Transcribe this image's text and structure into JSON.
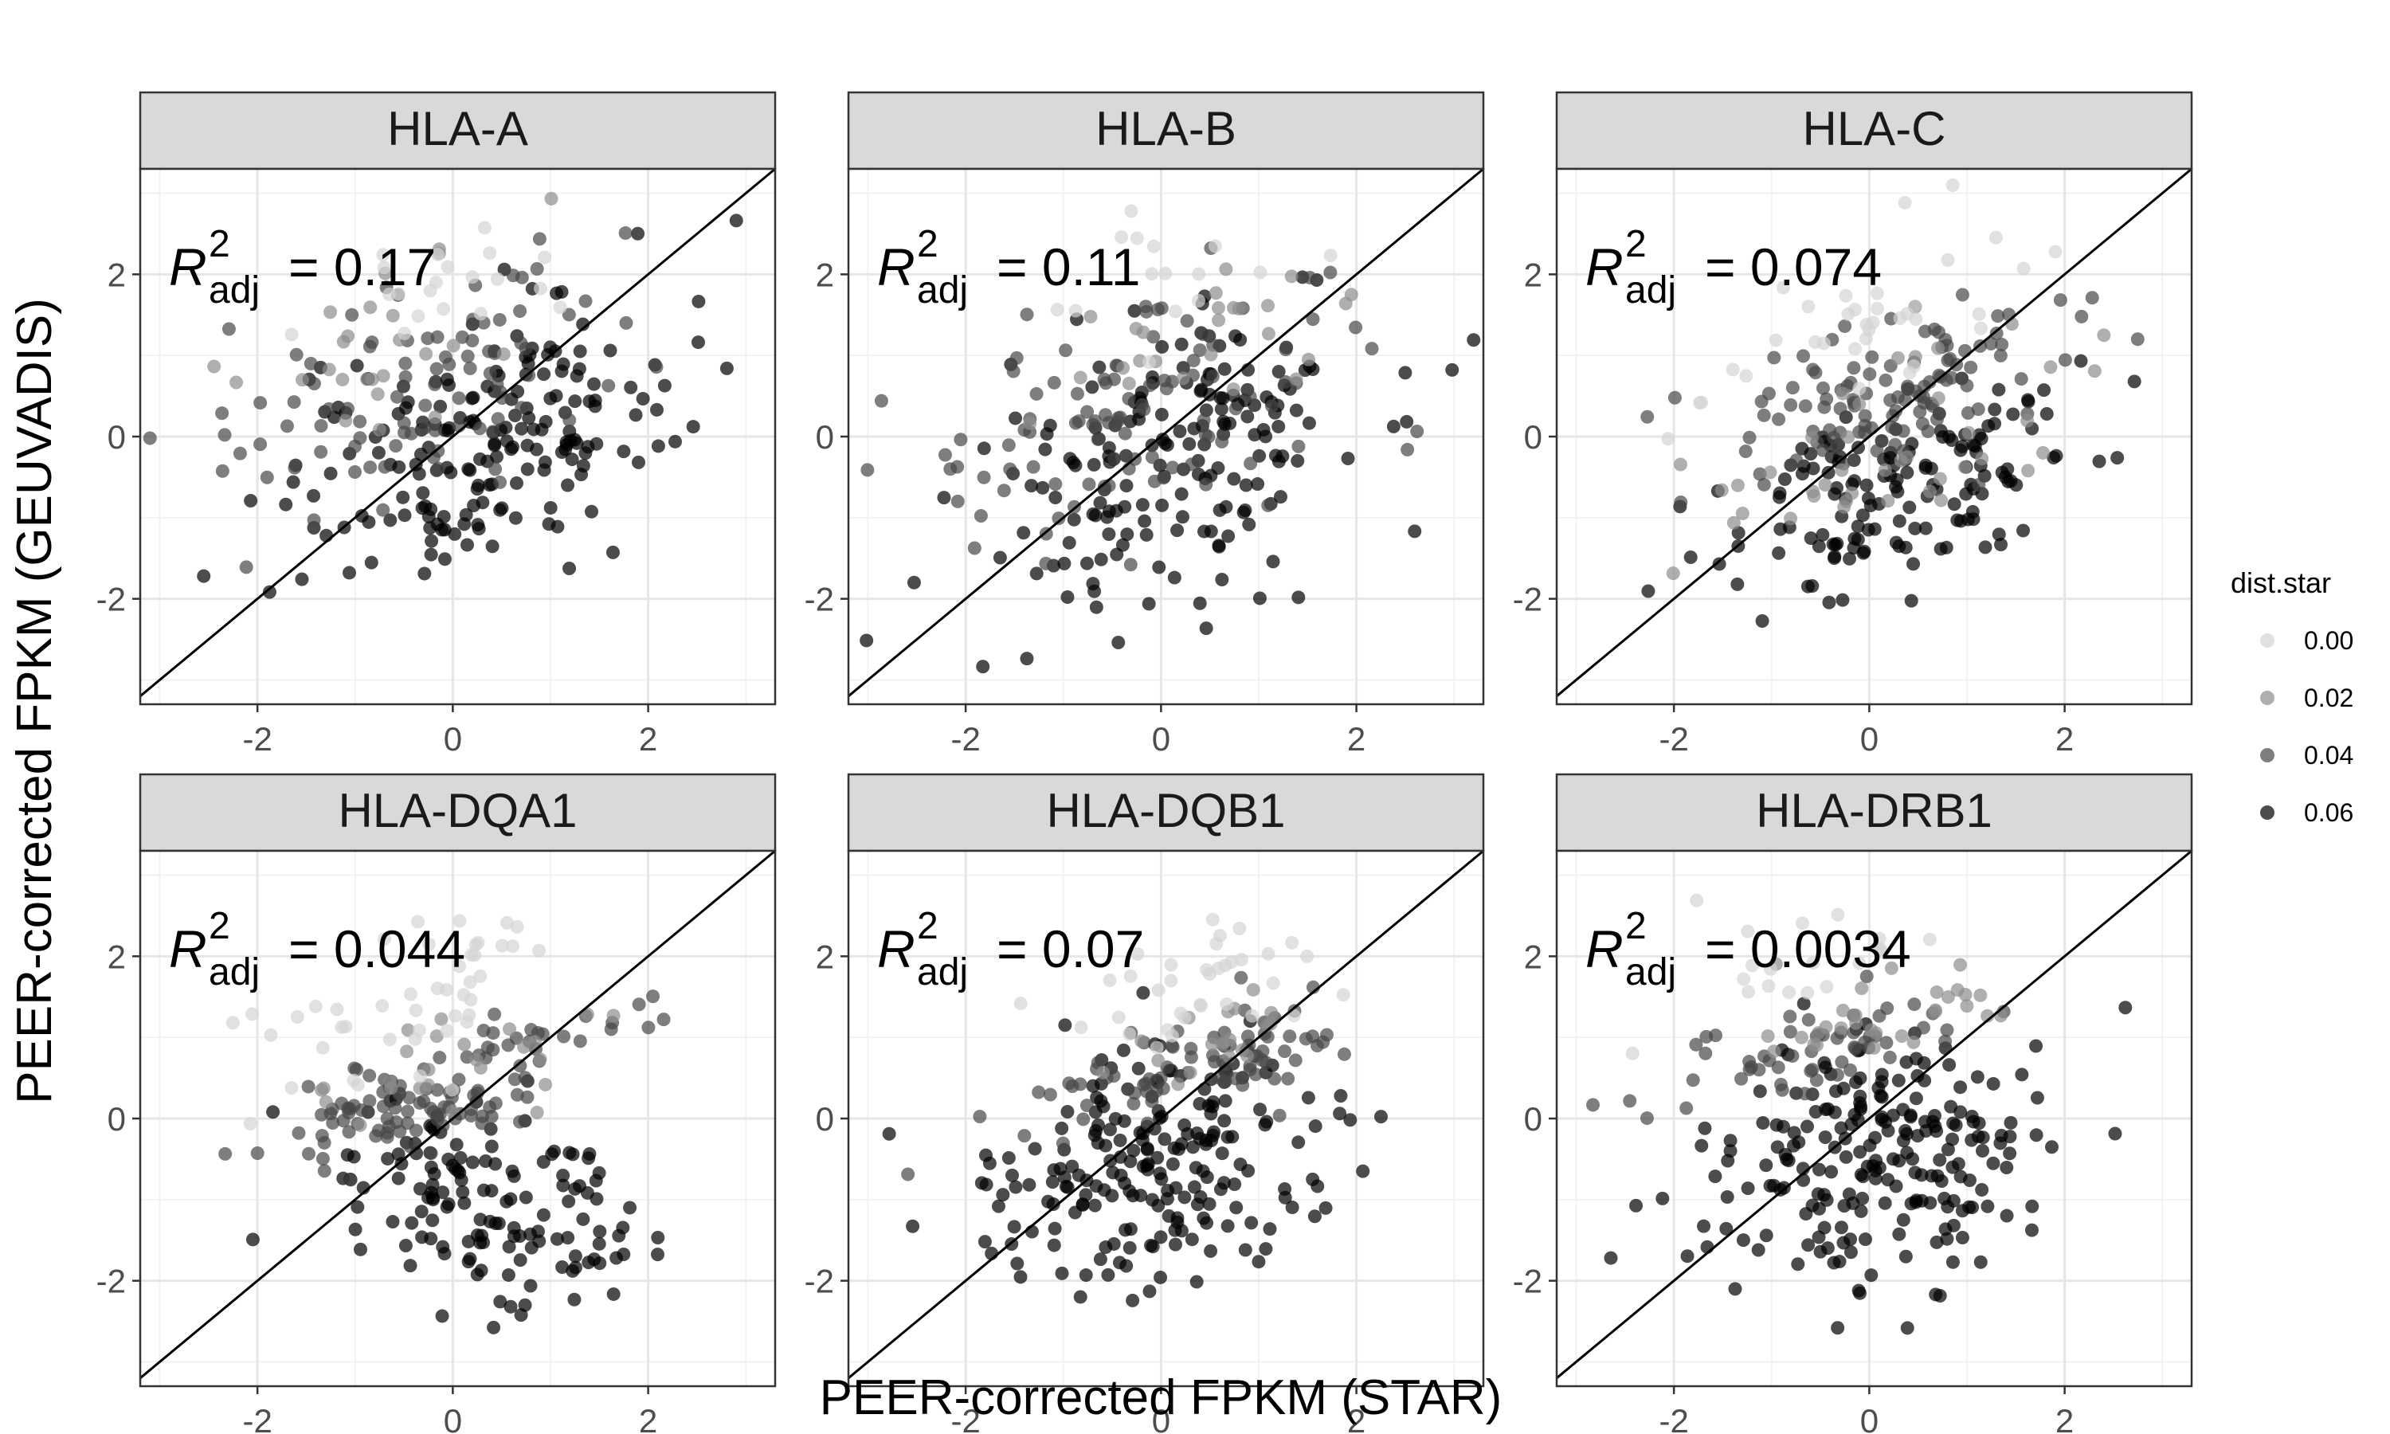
{
  "figure": {
    "xlabel": "PEER-corrected FPKM (STAR)",
    "ylabel": "PEER-corrected FPKM (GEUVADIS)",
    "legend_title": "dist.star",
    "legend_items": [
      "0.00",
      "0.02",
      "0.04",
      "0.06"
    ],
    "x_ticks": [
      "-2",
      "0",
      "2"
    ],
    "y_ticks": [
      "-2",
      "0",
      "2"
    ],
    "panel_strip_color": "#d9d9d9",
    "point_color_light": "#d4d4d4",
    "point_color_dark": "#000000"
  },
  "chart_data": [
    {
      "type": "scatter",
      "title": "HLA-A",
      "annotation": {
        "symbol": "R",
        "superscript": "2",
        "subscript": "adj",
        "value": "= 0.17"
      },
      "xlim": [
        -3.2,
        3.3
      ],
      "ylim": [
        -3.3,
        3.3
      ],
      "identity_line": true,
      "clusters": [
        {
          "dist": 0.06,
          "n": 190,
          "cx": 0.2,
          "cy": -0.1,
          "sx": 1.0,
          "sy": 0.75,
          "slope": 0.35
        },
        {
          "dist": 0.04,
          "n": 90,
          "cx": -0.2,
          "cy": 0.6,
          "sx": 1.1,
          "sy": 0.7,
          "slope": 0.3
        },
        {
          "dist": 0.02,
          "n": 25,
          "cx": -0.6,
          "cy": 1.2,
          "sx": 0.8,
          "sy": 0.6,
          "slope": 0.2
        },
        {
          "dist": 0.0,
          "n": 20,
          "cx": 0.0,
          "cy": 1.9,
          "sx": 0.7,
          "sy": 0.5,
          "slope": 0.2
        }
      ]
    },
    {
      "type": "scatter",
      "title": "HLA-B",
      "annotation": {
        "symbol": "R",
        "superscript": "2",
        "subscript": "adj",
        "value": "= 0.11"
      },
      "xlim": [
        -3.2,
        3.3
      ],
      "ylim": [
        -3.3,
        3.3
      ],
      "identity_line": true,
      "clusters": [
        {
          "dist": 0.06,
          "n": 180,
          "cx": 0.1,
          "cy": -0.3,
          "sx": 1.0,
          "sy": 0.9,
          "slope": 0.3
        },
        {
          "dist": 0.04,
          "n": 100,
          "cx": 0.0,
          "cy": 0.4,
          "sx": 1.1,
          "sy": 0.8,
          "slope": 0.3
        },
        {
          "dist": 0.02,
          "n": 25,
          "cx": 0.3,
          "cy": 1.3,
          "sx": 0.8,
          "sy": 0.5,
          "slope": 0.3
        },
        {
          "dist": 0.0,
          "n": 15,
          "cx": 0.0,
          "cy": 1.9,
          "sx": 0.8,
          "sy": 0.4,
          "slope": 0.2
        }
      ]
    },
    {
      "type": "scatter",
      "title": "HLA-C",
      "annotation": {
        "symbol": "R",
        "superscript": "2",
        "subscript": "adj",
        "value": "= 0.074"
      },
      "xlim": [
        -3.2,
        3.3
      ],
      "ylim": [
        -3.3,
        3.3
      ],
      "identity_line": true,
      "clusters": [
        {
          "dist": 0.06,
          "n": 150,
          "cx": 0.3,
          "cy": -0.6,
          "sx": 0.9,
          "sy": 0.55,
          "slope": 0.35
        },
        {
          "dist": 0.04,
          "n": 110,
          "cx": 0.2,
          "cy": 0.6,
          "sx": 1.0,
          "sy": 0.45,
          "slope": 0.35
        },
        {
          "dist": 0.02,
          "n": 40,
          "cx": 0.1,
          "cy": -0.3,
          "sx": 0.9,
          "sy": 0.6,
          "slope": 0.3
        },
        {
          "dist": 0.0,
          "n": 35,
          "cx": -0.2,
          "cy": 1.3,
          "sx": 0.9,
          "sy": 0.45,
          "slope": 0.45
        }
      ]
    },
    {
      "type": "scatter",
      "title": "HLA-DQA1",
      "annotation": {
        "symbol": "R",
        "superscript": "2",
        "subscript": "adj",
        "value": "= 0.044"
      },
      "xlim": [
        -3.2,
        3.3
      ],
      "ylim": [
        -3.3,
        3.3
      ],
      "identity_line": true,
      "clusters": [
        {
          "dist": 0.06,
          "n": 140,
          "cx": 0.5,
          "cy": -1.0,
          "sx": 0.8,
          "sy": 0.6,
          "slope": -0.25
        },
        {
          "dist": 0.04,
          "n": 110,
          "cx": -0.2,
          "cy": 0.3,
          "sx": 0.9,
          "sy": 0.35,
          "slope": 0.35
        },
        {
          "dist": 0.02,
          "n": 25,
          "cx": 0.2,
          "cy": 0.8,
          "sx": 0.8,
          "sy": 0.35,
          "slope": 0.3
        },
        {
          "dist": 0.0,
          "n": 45,
          "cx": -0.5,
          "cy": 1.3,
          "sx": 0.7,
          "sy": 0.5,
          "slope": 0.4
        }
      ]
    },
    {
      "type": "scatter",
      "title": "HLA-DQB1",
      "annotation": {
        "symbol": "R",
        "superscript": "2",
        "subscript": "adj",
        "value": "= 0.07"
      },
      "xlim": [
        -3.2,
        3.3
      ],
      "ylim": [
        -3.3,
        3.3
      ],
      "identity_line": true,
      "clusters": [
        {
          "dist": 0.06,
          "n": 210,
          "cx": -0.1,
          "cy": -0.6,
          "sx": 0.9,
          "sy": 0.75,
          "slope": 0.15
        },
        {
          "dist": 0.04,
          "n": 80,
          "cx": 0.3,
          "cy": 0.6,
          "sx": 0.9,
          "sy": 0.3,
          "slope": 0.3
        },
        {
          "dist": 0.02,
          "n": 20,
          "cx": 0.7,
          "cy": 1.0,
          "sx": 0.6,
          "sy": 0.3,
          "slope": 0.3
        },
        {
          "dist": 0.0,
          "n": 35,
          "cx": 0.6,
          "cy": 1.8,
          "sx": 0.6,
          "sy": 0.4,
          "slope": 0.3
        }
      ]
    },
    {
      "type": "scatter",
      "title": "HLA-DRB1",
      "annotation": {
        "symbol": "R",
        "superscript": "2",
        "subscript": "adj",
        "value": "= 0.0034"
      },
      "xlim": [
        -3.2,
        3.3
      ],
      "ylim": [
        -3.3,
        3.3
      ],
      "identity_line": true,
      "clusters": [
        {
          "dist": 0.06,
          "n": 220,
          "cx": 0.1,
          "cy": -0.5,
          "sx": 0.85,
          "sy": 0.75,
          "slope": 0.1
        },
        {
          "dist": 0.04,
          "n": 55,
          "cx": -0.6,
          "cy": 0.8,
          "sx": 0.9,
          "sy": 0.25,
          "slope": 0.2
        },
        {
          "dist": 0.02,
          "n": 30,
          "cx": 0.1,
          "cy": 1.2,
          "sx": 0.7,
          "sy": 0.3,
          "slope": 0.3
        },
        {
          "dist": 0.0,
          "n": 20,
          "cx": -0.5,
          "cy": 1.9,
          "sx": 0.8,
          "sy": 0.4,
          "slope": 0.2
        }
      ]
    }
  ]
}
